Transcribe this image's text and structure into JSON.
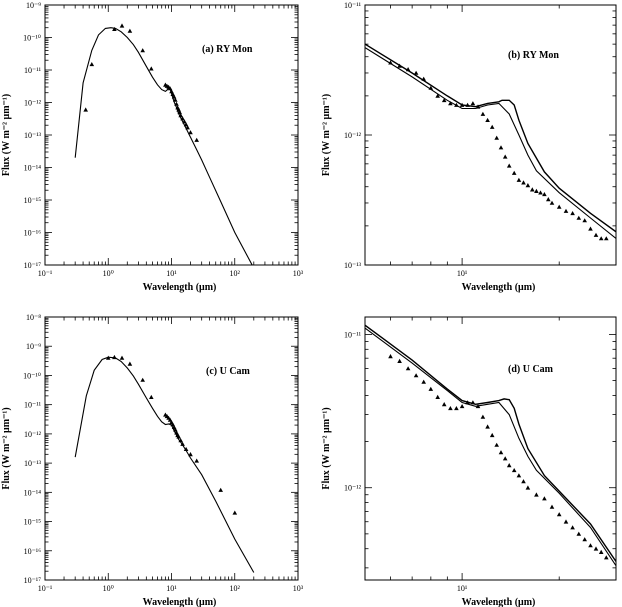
{
  "chart_data": [
    {
      "type": "scatter",
      "panel_label": "(a) RY Mon",
      "xlabel": "Wavelength (μm)",
      "ylabel": "Flux (W m⁻² μm⁻¹)",
      "xscale": "log",
      "yscale": "log",
      "xlim": [
        0.1,
        1000
      ],
      "ylim": [
        1e-17,
        1e-09
      ],
      "x_ticks": [
        "10⁻¹",
        "10⁰",
        "10¹",
        "10²",
        "10³"
      ],
      "y_ticks": [
        "10⁻¹⁷",
        "10⁻¹⁶",
        "10⁻¹⁵",
        "10⁻¹⁴",
        "10⁻¹³",
        "10⁻¹²",
        "10⁻¹¹",
        "10⁻¹⁰",
        "10⁻⁹"
      ],
      "series": [
        {
          "kind": "line",
          "x": [
            0.3,
            0.4,
            0.55,
            0.7,
            0.9,
            1.1,
            1.3,
            1.6,
            2.0,
            2.5,
            3.0,
            4.0,
            5.0,
            6.0,
            7.0,
            8.0,
            8.5,
            9.0,
            9.5,
            10.0,
            10.5,
            11.0,
            11.5,
            12.0,
            12.5,
            13.0,
            14.0,
            15.0,
            17.0,
            20.0,
            25.0,
            30.0,
            40.0,
            60.0,
            100.0,
            200.0
          ],
          "y": [
            2e-14,
            4e-12,
            4e-11,
            1.2e-10,
            1.9e-10,
            2e-10,
            1.9e-10,
            1.5e-10,
            1e-10,
            6e-11,
            3.5e-11,
            1.3e-11,
            6e-12,
            3.5e-12,
            2.5e-12,
            2.2e-12,
            2.4e-12,
            2.8e-12,
            2.6e-12,
            1.9e-12,
            1.4e-12,
            1.05e-12,
            8.5e-13,
            7e-13,
            5.5e-13,
            4.5e-13,
            3.4e-13,
            2.6e-13,
            1.6e-13,
            8.5e-14,
            3.5e-14,
            1.7e-14,
            5e-15,
            9e-16,
            1e-16,
            8e-18
          ]
        },
        {
          "kind": "points",
          "x": [
            0.44,
            0.55,
            1.25,
            1.65,
            2.2,
            3.5,
            4.8,
            8.0,
            8.5,
            9.0,
            9.5,
            10.0,
            10.5,
            11.0,
            11.5,
            12.0,
            12.5,
            13.0,
            13.5,
            14.0,
            15.0,
            16.0,
            17.0,
            18.0,
            20.0,
            25.0
          ],
          "y": [
            6e-13,
            1.5e-11,
            1.8e-10,
            2.3e-10,
            1.6e-10,
            4e-11,
            1.1e-11,
            3.5e-12,
            3.2e-12,
            3e-12,
            2.7e-12,
            2.2e-12,
            1.8e-12,
            1.5e-12,
            1.2e-12,
            9e-13,
            7e-13,
            6e-13,
            5e-13,
            4e-13,
            3.2e-13,
            2.6e-13,
            2.1e-13,
            1.7e-13,
            1.2e-13,
            7e-14
          ]
        }
      ]
    },
    {
      "type": "scatter",
      "panel_label": "(b) RY Mon",
      "xlabel": "Wavelength (μm)",
      "ylabel": "Flux (W m⁻² μm⁻¹)",
      "xscale": "log",
      "yscale": "log",
      "xlim": [
        5,
        30
      ],
      "ylim": [
        1e-13,
        1e-11
      ],
      "x_ticks": [
        "10¹"
      ],
      "y_ticks": [
        "10⁻¹³",
        "10⁻¹²",
        "10⁻¹¹"
      ],
      "series": [
        {
          "kind": "line",
          "x": [
            5.0,
            7.0,
            9.0,
            10.0,
            11.0,
            12.0,
            13.0,
            14.0,
            15.0,
            16.0,
            17.0,
            20.0,
            25.0,
            30.0
          ],
          "y": [
            4.7e-12,
            2.8e-12,
            1.85e-12,
            1.6e-12,
            1.6e-12,
            1.7e-12,
            1.75e-12,
            1.45e-12,
            1e-12,
            7e-13,
            5.3e-13,
            3.6e-13,
            2.3e-13,
            1.6e-13
          ]
        },
        {
          "kind": "line",
          "x": [
            5.0,
            7.0,
            9.0,
            10.0,
            11.0,
            12.0,
            13.0,
            13.3,
            14.0,
            14.5,
            15.0,
            16.0,
            18.0,
            20.0,
            25.0,
            30.0
          ],
          "y": [
            5e-12,
            3e-12,
            2e-12,
            1.7e-12,
            1.65e-12,
            1.75e-12,
            1.8e-12,
            1.85e-12,
            1.85e-12,
            1.7e-12,
            1.3e-12,
            8.6e-13,
            5.2e-13,
            3.9e-13,
            2.5e-13,
            1.8e-13
          ]
        },
        {
          "kind": "points",
          "x": [
            6.0,
            6.4,
            6.8,
            7.2,
            7.6,
            8.0,
            8.4,
            8.8,
            9.2,
            9.6,
            10.0,
            10.4,
            10.8,
            11.2,
            11.6,
            12.0,
            12.4,
            12.8,
            13.2,
            13.6,
            14.0,
            14.5,
            15.0,
            15.5,
            16.0,
            16.5,
            17.0,
            17.5,
            18.0,
            18.5,
            19.0,
            20.0,
            21.0,
            22.0,
            23.0,
            24.0,
            25.0,
            26.0,
            27.0,
            28.0
          ],
          "y": [
            3.6e-12,
            3.4e-12,
            3.2e-12,
            3e-12,
            2.7e-12,
            2.3e-12,
            2e-12,
            1.85e-12,
            1.75e-12,
            1.7e-12,
            1.7e-12,
            1.7e-12,
            1.75e-12,
            1.65e-12,
            1.45e-12,
            1.3e-12,
            1.15e-12,
            9.5e-13,
            8e-13,
            6.8e-13,
            5.8e-13,
            5.1e-13,
            4.5e-13,
            4.3e-13,
            4.1e-13,
            3.8e-13,
            3.7e-13,
            3.6e-13,
            3.5e-13,
            3.2e-13,
            3e-13,
            2.8e-13,
            2.6e-13,
            2.5e-13,
            2.3e-13,
            2.2e-13,
            1.9e-13,
            1.7e-13,
            1.6e-13,
            1.6e-13
          ]
        }
      ]
    },
    {
      "type": "scatter",
      "panel_label": "(c) U Cam",
      "xlabel": "Wavelength (μm)",
      "ylabel": "Flux (W m⁻² μm⁻¹)",
      "xscale": "log",
      "yscale": "log",
      "xlim": [
        0.1,
        1000
      ],
      "ylim": [
        1e-17,
        1e-08
      ],
      "x_ticks": [
        "10⁻¹",
        "10⁰",
        "10¹",
        "10²",
        "10³"
      ],
      "y_ticks": [
        "10⁻¹⁷",
        "10⁻¹⁶",
        "10⁻¹⁵",
        "10⁻¹⁴",
        "10⁻¹³",
        "10⁻¹²",
        "10⁻¹¹",
        "10⁻¹⁰",
        "10⁻⁹",
        "10⁻⁸"
      ],
      "series": [
        {
          "kind": "line",
          "x": [
            0.3,
            0.45,
            0.6,
            0.8,
            1.0,
            1.3,
            1.6,
            2.0,
            2.5,
            3.0,
            4.0,
            5.0,
            6.0,
            7.0,
            8.0,
            9.0,
            10.0,
            11.0,
            12.0,
            13.0,
            14.0,
            15.0,
            17.0,
            20.0,
            30.0,
            50.0,
            100.0,
            200.0
          ],
          "y": [
            1.6e-13,
            2e-11,
            1.5e-10,
            3.5e-10,
            4.2e-10,
            4e-10,
            3e-10,
            1.8e-10,
            9.5e-11,
            5e-11,
            1.7e-11,
            7.5e-12,
            4e-12,
            2.6e-12,
            2.1e-12,
            2.2e-12,
            2e-12,
            1.3e-12,
            9e-13,
            6.5e-13,
            5.2e-13,
            4.2e-13,
            2.7e-13,
            1.5e-13,
            4e-14,
            5e-15,
            2.5e-16,
            1.8e-17
          ]
        },
        {
          "kind": "points",
          "x": [
            1.0,
            1.25,
            1.65,
            2.2,
            3.5,
            4.8,
            8.0,
            8.5,
            9.0,
            9.5,
            10.0,
            10.5,
            11.0,
            11.5,
            12.0,
            12.5,
            13.0,
            14.0,
            15.0,
            17.0,
            20.0,
            25.0,
            60.0,
            100.0
          ],
          "y": [
            4e-10,
            4.2e-10,
            4e-10,
            2.5e-10,
            7e-11,
            1.8e-11,
            4.5e-12,
            4e-12,
            3.5e-12,
            3e-12,
            2.5e-12,
            2.1e-12,
            1.7e-12,
            1.4e-12,
            1.1e-12,
            9e-13,
            8e-13,
            6e-13,
            4.5e-13,
            3e-13,
            2e-13,
            1.2e-13,
            1.2e-14,
            2e-15
          ]
        }
      ]
    },
    {
      "type": "scatter",
      "panel_label": "(d) U Cam",
      "xlabel": "Wavelength (μm)",
      "ylabel": "Flux (W m⁻² μm⁻¹)",
      "xscale": "log",
      "yscale": "log",
      "xlim": [
        5,
        30
      ],
      "ylim": [
        2.5e-13,
        1.3e-11
      ],
      "x_ticks": [
        "10¹"
      ],
      "y_ticks": [
        "10⁻¹²",
        "10⁻¹¹"
      ],
      "series": [
        {
          "kind": "line",
          "x": [
            5.0,
            7.0,
            9.0,
            10.0,
            11.0,
            12.0,
            13.0,
            14.0,
            15.0,
            16.0,
            17.0,
            20.0,
            25.0,
            30.0
          ],
          "y": [
            1.1e-11,
            6.5e-12,
            4.3e-12,
            3.6e-12,
            3.4e-12,
            3.5e-12,
            3.6e-12,
            3e-12,
            2.1e-12,
            1.6e-12,
            1.3e-12,
            9.2e-13,
            5.5e-13,
            3.1e-13
          ]
        },
        {
          "kind": "line",
          "x": [
            5.0,
            7.0,
            9.0,
            10.0,
            11.0,
            12.0,
            13.0,
            13.5,
            14.0,
            14.5,
            15.0,
            16.0,
            18.0,
            20.0,
            25.0,
            30.0
          ],
          "y": [
            1.15e-11,
            6.8e-12,
            4.4e-12,
            3.7e-12,
            3.5e-12,
            3.6e-12,
            3.7e-12,
            3.8e-12,
            3.75e-12,
            3.3e-12,
            2.6e-12,
            1.8e-12,
            1.2e-12,
            9.5e-13,
            5.8e-13,
            3.3e-13
          ]
        },
        {
          "kind": "points",
          "x": [
            6.0,
            6.4,
            6.8,
            7.2,
            7.6,
            8.0,
            8.4,
            8.8,
            9.2,
            9.6,
            10.0,
            10.4,
            10.8,
            11.2,
            11.6,
            12.0,
            12.4,
            12.8,
            13.2,
            13.6,
            14.0,
            14.5,
            15.0,
            15.5,
            16.0,
            17.0,
            18.0,
            19.0,
            20.0,
            21.0,
            22.0,
            23.0,
            24.0,
            25.0,
            26.0,
            27.0,
            28.0
          ],
          "y": [
            7.2e-12,
            6.7e-12,
            6e-12,
            5.4e-12,
            4.9e-12,
            4.4e-12,
            3.9e-12,
            3.5e-12,
            3.3e-12,
            3.3e-12,
            3.4e-12,
            3.6e-12,
            3.6e-12,
            3.4e-12,
            2.9e-12,
            2.5e-12,
            2.2e-12,
            1.9e-12,
            1.7e-12,
            1.55e-12,
            1.4e-12,
            1.3e-12,
            1.2e-12,
            1.1e-12,
            1e-12,
            9e-13,
            8.5e-13,
            7.5e-13,
            6.7e-13,
            6e-13,
            5.5e-13,
            5e-13,
            4.6e-13,
            4.2e-13,
            4e-13,
            3.8e-13,
            3.5e-13
          ]
        }
      ]
    }
  ]
}
